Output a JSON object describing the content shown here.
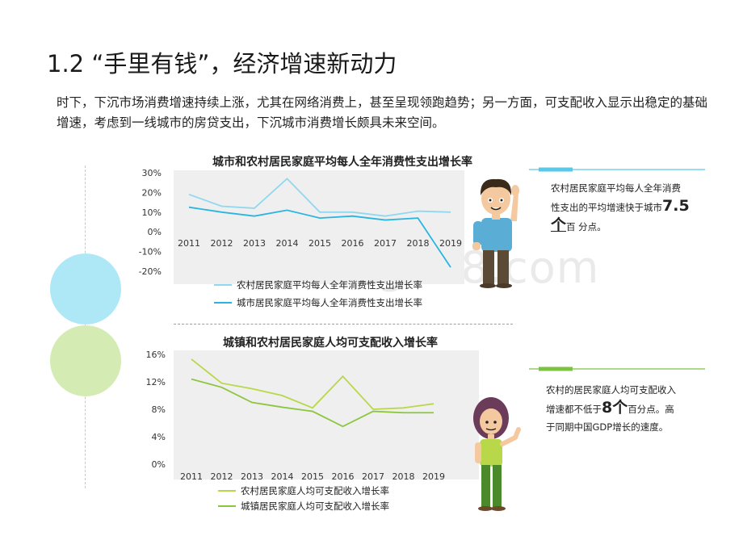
{
  "page": {
    "title": "1.2 “手里有钱”，经济增速新动力",
    "intro": "时下，下沉市场消费增速持续上涨，尤其在网络消费上，甚至呈现领跑趋势；另一方面，可支配收入显示出稳定的基础增速，考虑到一线城市的房贷支出，下沉城市消费增长颇具未来空间。",
    "watermark": "www.baogao8.com",
    "accent_blue": "#5bc8e8",
    "accent_green": "#7cc243"
  },
  "notes": {
    "consumption": {
      "line1": "农村居民家庭平均每人全年消费",
      "line2_prefix": "性支出的平均增速快于城市",
      "num": "7.5",
      "unit": "个",
      "suffix": "百 分点。"
    },
    "income": {
      "line1": "农村的居民家庭人均可支配收入",
      "line2_prefix": "增速都不低于",
      "num": "8",
      "unit": "个",
      "line2_suffix": "百分点。高",
      "line3": "于同期中国GDP增长的速度。"
    }
  },
  "chart_data": [
    {
      "type": "line",
      "title": "城市和农村居民家庭平均每人全年消费性支出增长率",
      "x": [
        "2011",
        "2012",
        "2013",
        "2014",
        "2015",
        "2016",
        "2017",
        "2018",
        "2019"
      ],
      "y_ticks": [
        "30%",
        "20%",
        "10%",
        "0%",
        "-10%",
        "-20%"
      ],
      "ylim": [
        -20,
        30
      ],
      "grid": false,
      "legend_position": "bottom",
      "series": [
        {
          "name": "农村居民家庭平均每人全年消费性支出增长率",
          "color": "#8fd8f0",
          "values": [
            19,
            13,
            12,
            27,
            10,
            10,
            8,
            10.5,
            10
          ]
        },
        {
          "name": "城市居民家庭平均每人全年消费性支出增长率",
          "color": "#29b5e0",
          "values": [
            12.5,
            10,
            8,
            11,
            7,
            8,
            6,
            7,
            -18
          ]
        }
      ]
    },
    {
      "type": "line",
      "title": "城镇和农村居民家庭人均可支配收入增长率",
      "x": [
        "2011",
        "2012",
        "2013",
        "2014",
        "2015",
        "2016",
        "2017",
        "2018",
        "2019"
      ],
      "y_ticks": [
        "16%",
        "12%",
        "8%",
        "4%",
        "0%"
      ],
      "ylim": [
        0,
        16
      ],
      "grid": false,
      "legend_position": "bottom",
      "series": [
        {
          "name": "农村居民家庭人均可支配收入增长率",
          "color": "#b8d84a",
          "values": [
            15.3,
            11.8,
            11,
            10,
            8.2,
            12.8,
            8,
            8.2,
            8.8
          ]
        },
        {
          "name": "城镇居民家庭人均可支配收入增长率",
          "color": "#8cc63f",
          "values": [
            12.4,
            11.2,
            9,
            8.3,
            7.7,
            5.5,
            7.7,
            7.5,
            7.5
          ]
        }
      ]
    }
  ]
}
